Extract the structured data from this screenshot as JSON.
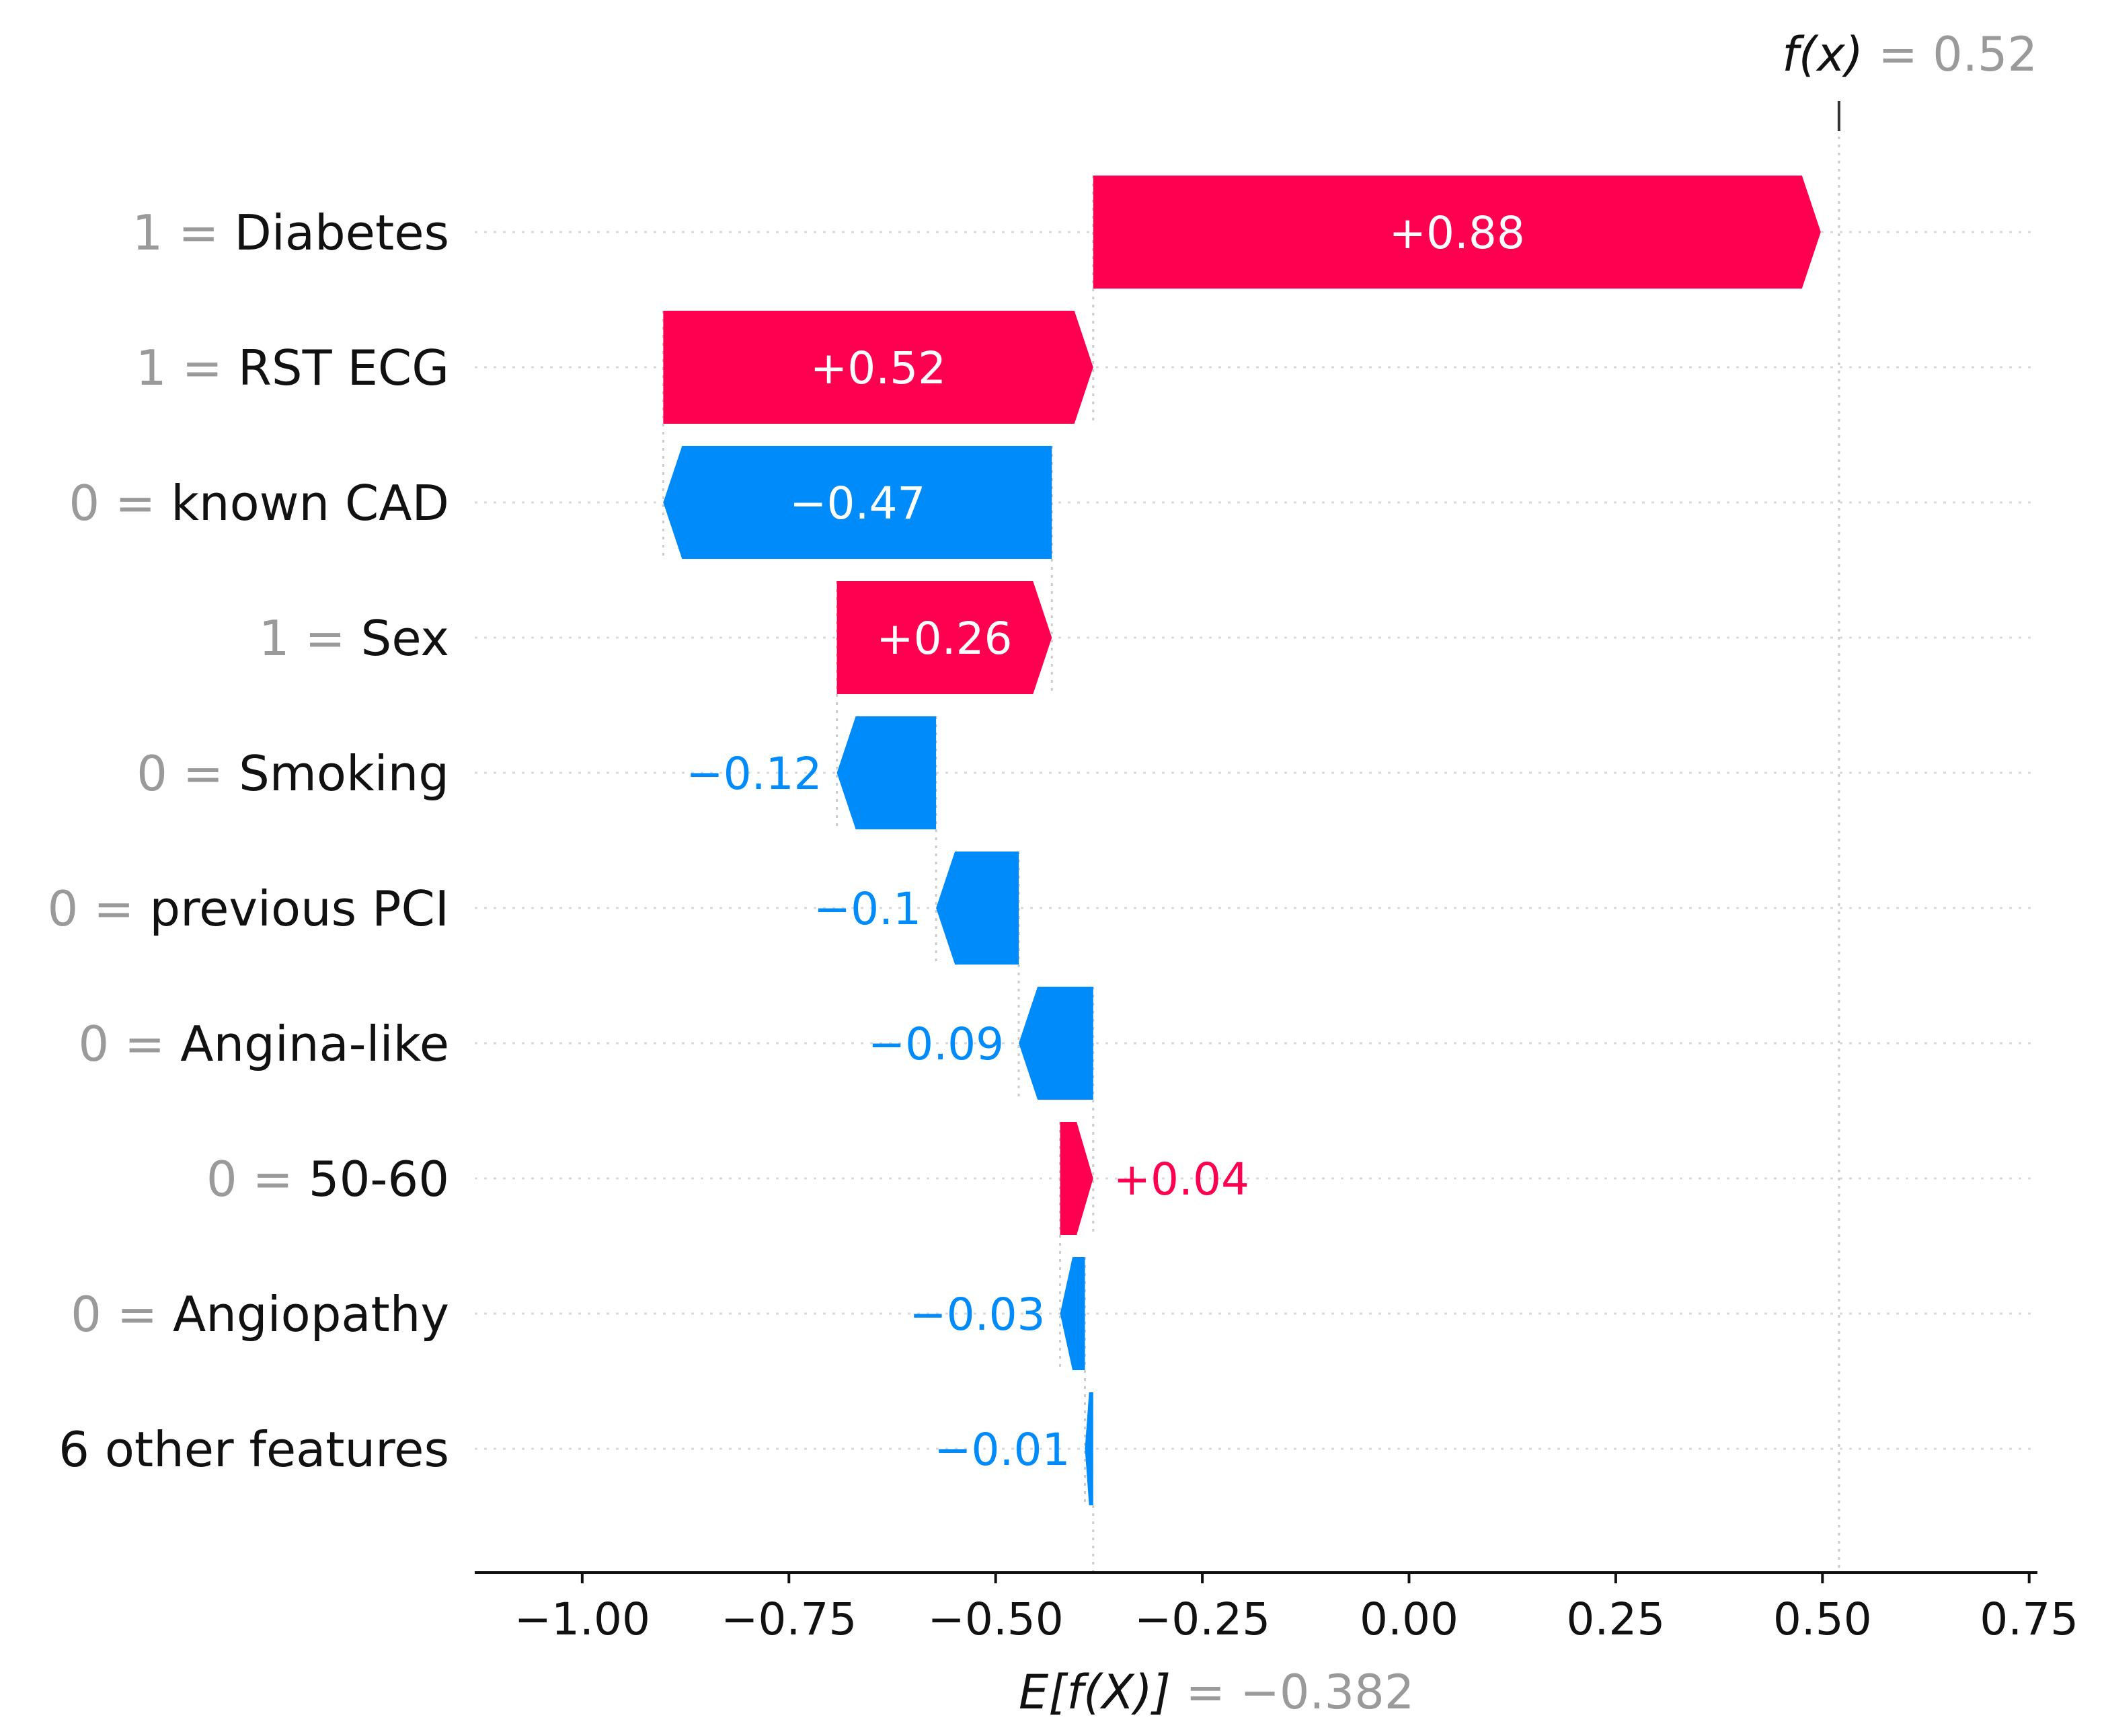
{
  "chart_data": {
    "type": "waterfall",
    "title": "",
    "xlabel": "",
    "ylabel": "",
    "xlim": [
      -1.13,
      0.76
    ],
    "xticks": [
      -1.0,
      -0.75,
      -0.5,
      -0.25,
      0.0,
      0.25,
      0.5,
      0.75
    ],
    "xtick_labels": [
      "−1.00",
      "−0.75",
      "−0.50",
      "−0.25",
      "0.00",
      "0.25",
      "0.50",
      "0.75"
    ],
    "base_value": -0.382,
    "base_prefix": "E[f(X)]",
    "base_label": " = −0.382",
    "output_value": 0.52,
    "output_prefix": "f(x)",
    "output_label": " = 0.52",
    "features": [
      {
        "value": "1 = ",
        "name": "Diabetes",
        "contribution": 0.88,
        "label": "+0.88"
      },
      {
        "value": "1 = ",
        "name": "RST ECG",
        "contribution": 0.52,
        "label": "+0.52"
      },
      {
        "value": "0 = ",
        "name": "known CAD",
        "contribution": -0.47,
        "label": "−0.47"
      },
      {
        "value": "1 = ",
        "name": "Sex",
        "contribution": 0.26,
        "label": "+0.26"
      },
      {
        "value": "0 = ",
        "name": "Smoking",
        "contribution": -0.12,
        "label": "−0.12"
      },
      {
        "value": "0 = ",
        "name": "previous PCI",
        "contribution": -0.1,
        "label": "−0.1"
      },
      {
        "value": "0 = ",
        "name": "Angina-like",
        "contribution": -0.09,
        "label": "−0.09"
      },
      {
        "value": "0 = ",
        "name": "50-60",
        "contribution": 0.04,
        "label": "+0.04"
      },
      {
        "value": "0 = ",
        "name": "Angiopathy",
        "contribution": -0.03,
        "label": "−0.03"
      },
      {
        "value": "",
        "name": "6 other features",
        "contribution": -0.01,
        "label": "−0.01"
      }
    ],
    "colors": {
      "positive": "#ff0051",
      "negative": "#008bfb",
      "text": "#111111",
      "muted": "#9a9a9a"
    }
  }
}
